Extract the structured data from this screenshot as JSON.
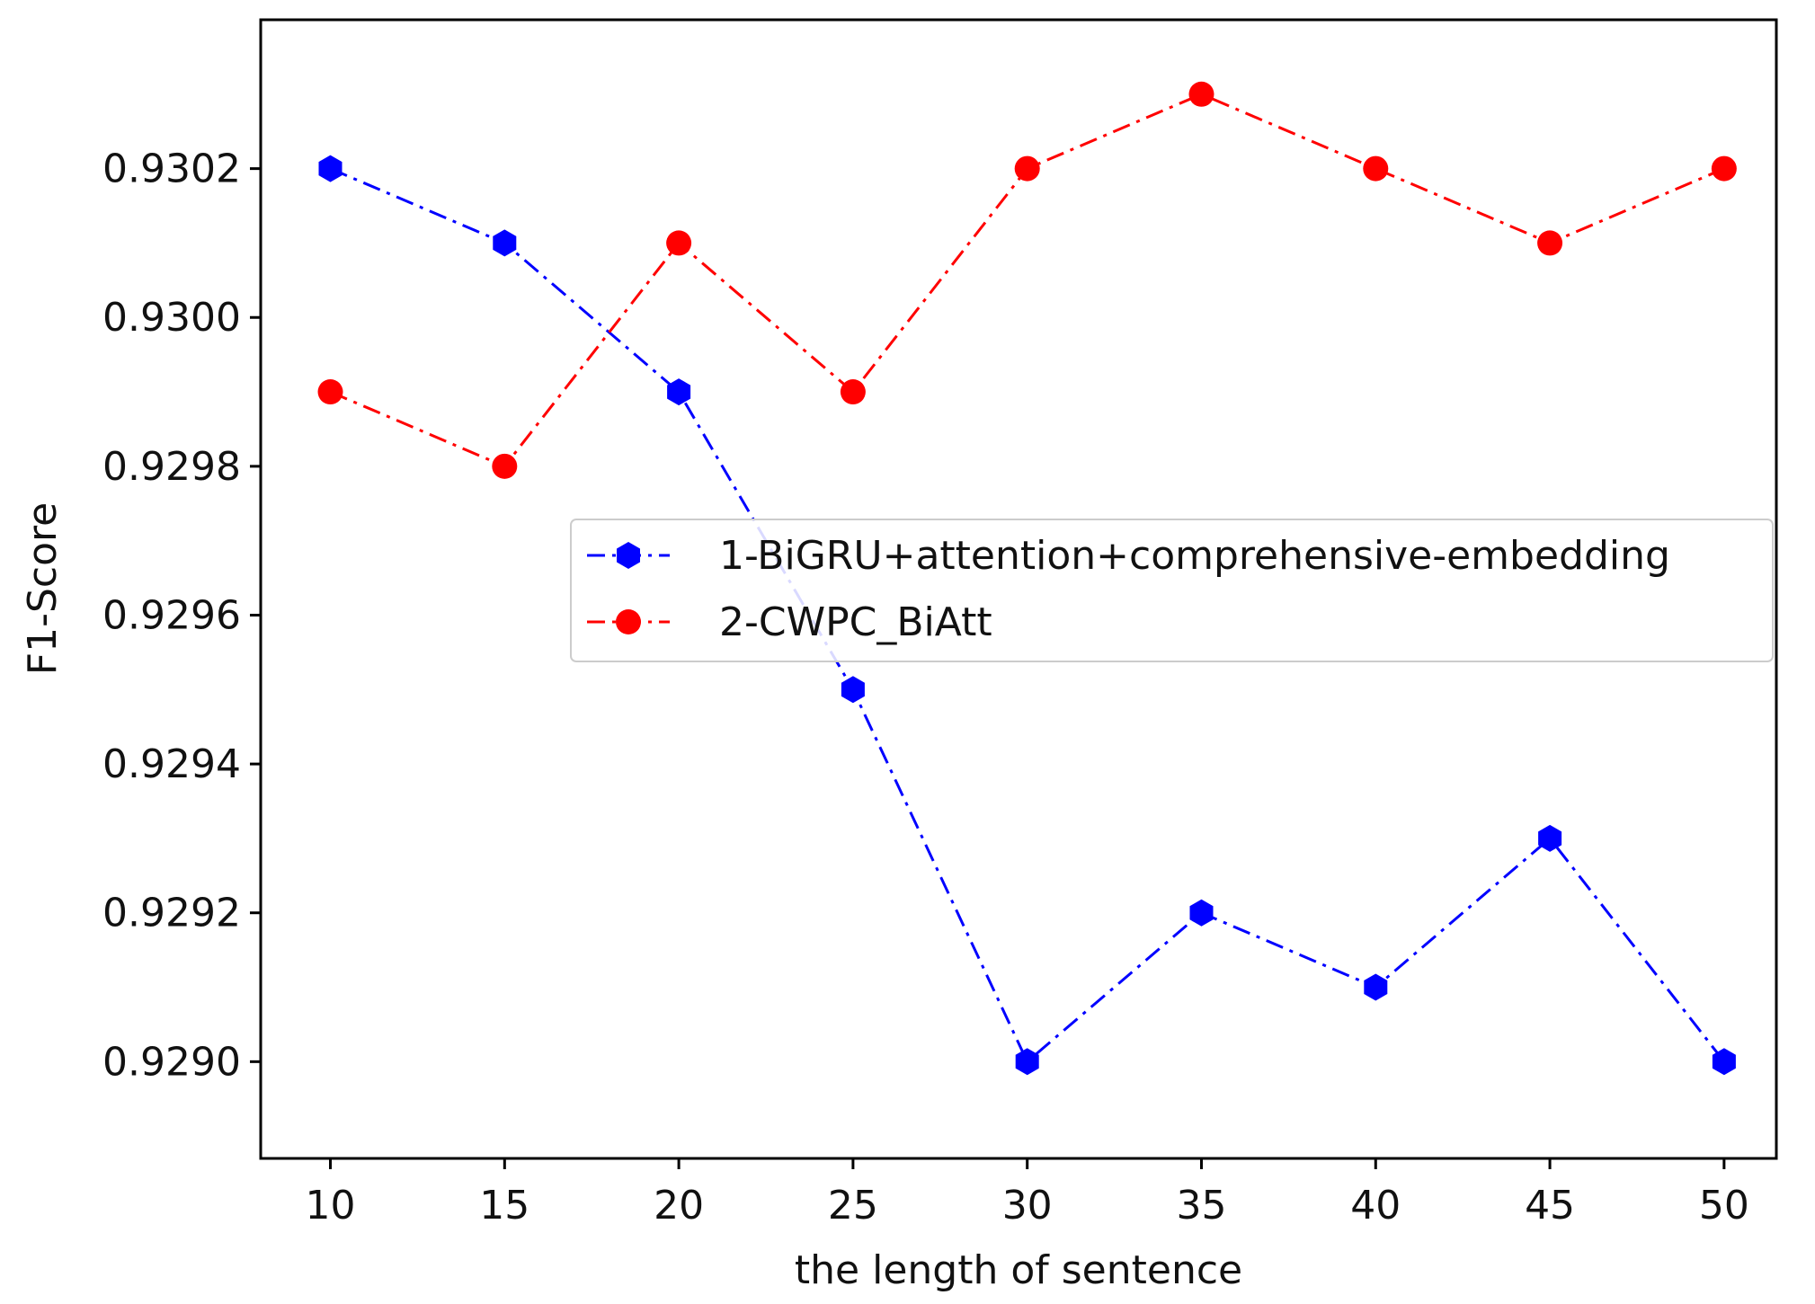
{
  "chart_data": {
    "type": "line",
    "title": "",
    "xlabel": "the length of sentence",
    "ylabel": "F1-Score",
    "x": [
      10,
      15,
      20,
      25,
      30,
      35,
      40,
      45,
      50
    ],
    "xlim": [
      8,
      51.5
    ],
    "ylim": [
      0.92887,
      0.9304
    ],
    "xticks": [
      10,
      15,
      20,
      25,
      30,
      35,
      40,
      45,
      50
    ],
    "yticks": [
      0.929,
      0.9292,
      0.9294,
      0.9296,
      0.9298,
      0.93,
      0.9302
    ],
    "ytick_labels": [
      "0.9290",
      "0.9292",
      "0.9294",
      "0.9296",
      "0.9298",
      "0.9300",
      "0.9302"
    ],
    "grid": false,
    "legend_position": "center-right",
    "series": [
      {
        "name": "1-BiGRU+attention+comprehensive-embedding",
        "color": "#0000ff",
        "marker": "hexagon",
        "linestyle": "dashdot",
        "values": [
          0.9302,
          0.9301,
          0.9299,
          0.9295,
          0.929,
          0.9292,
          0.9291,
          0.9293,
          0.929
        ]
      },
      {
        "name": "2-CWPC_BiAtt",
        "color": "#ff0000",
        "marker": "circle",
        "linestyle": "dashdot",
        "values": [
          0.9299,
          0.9298,
          0.9301,
          0.9299,
          0.9302,
          0.9303,
          0.9302,
          0.9301,
          0.9302
        ]
      }
    ]
  }
}
